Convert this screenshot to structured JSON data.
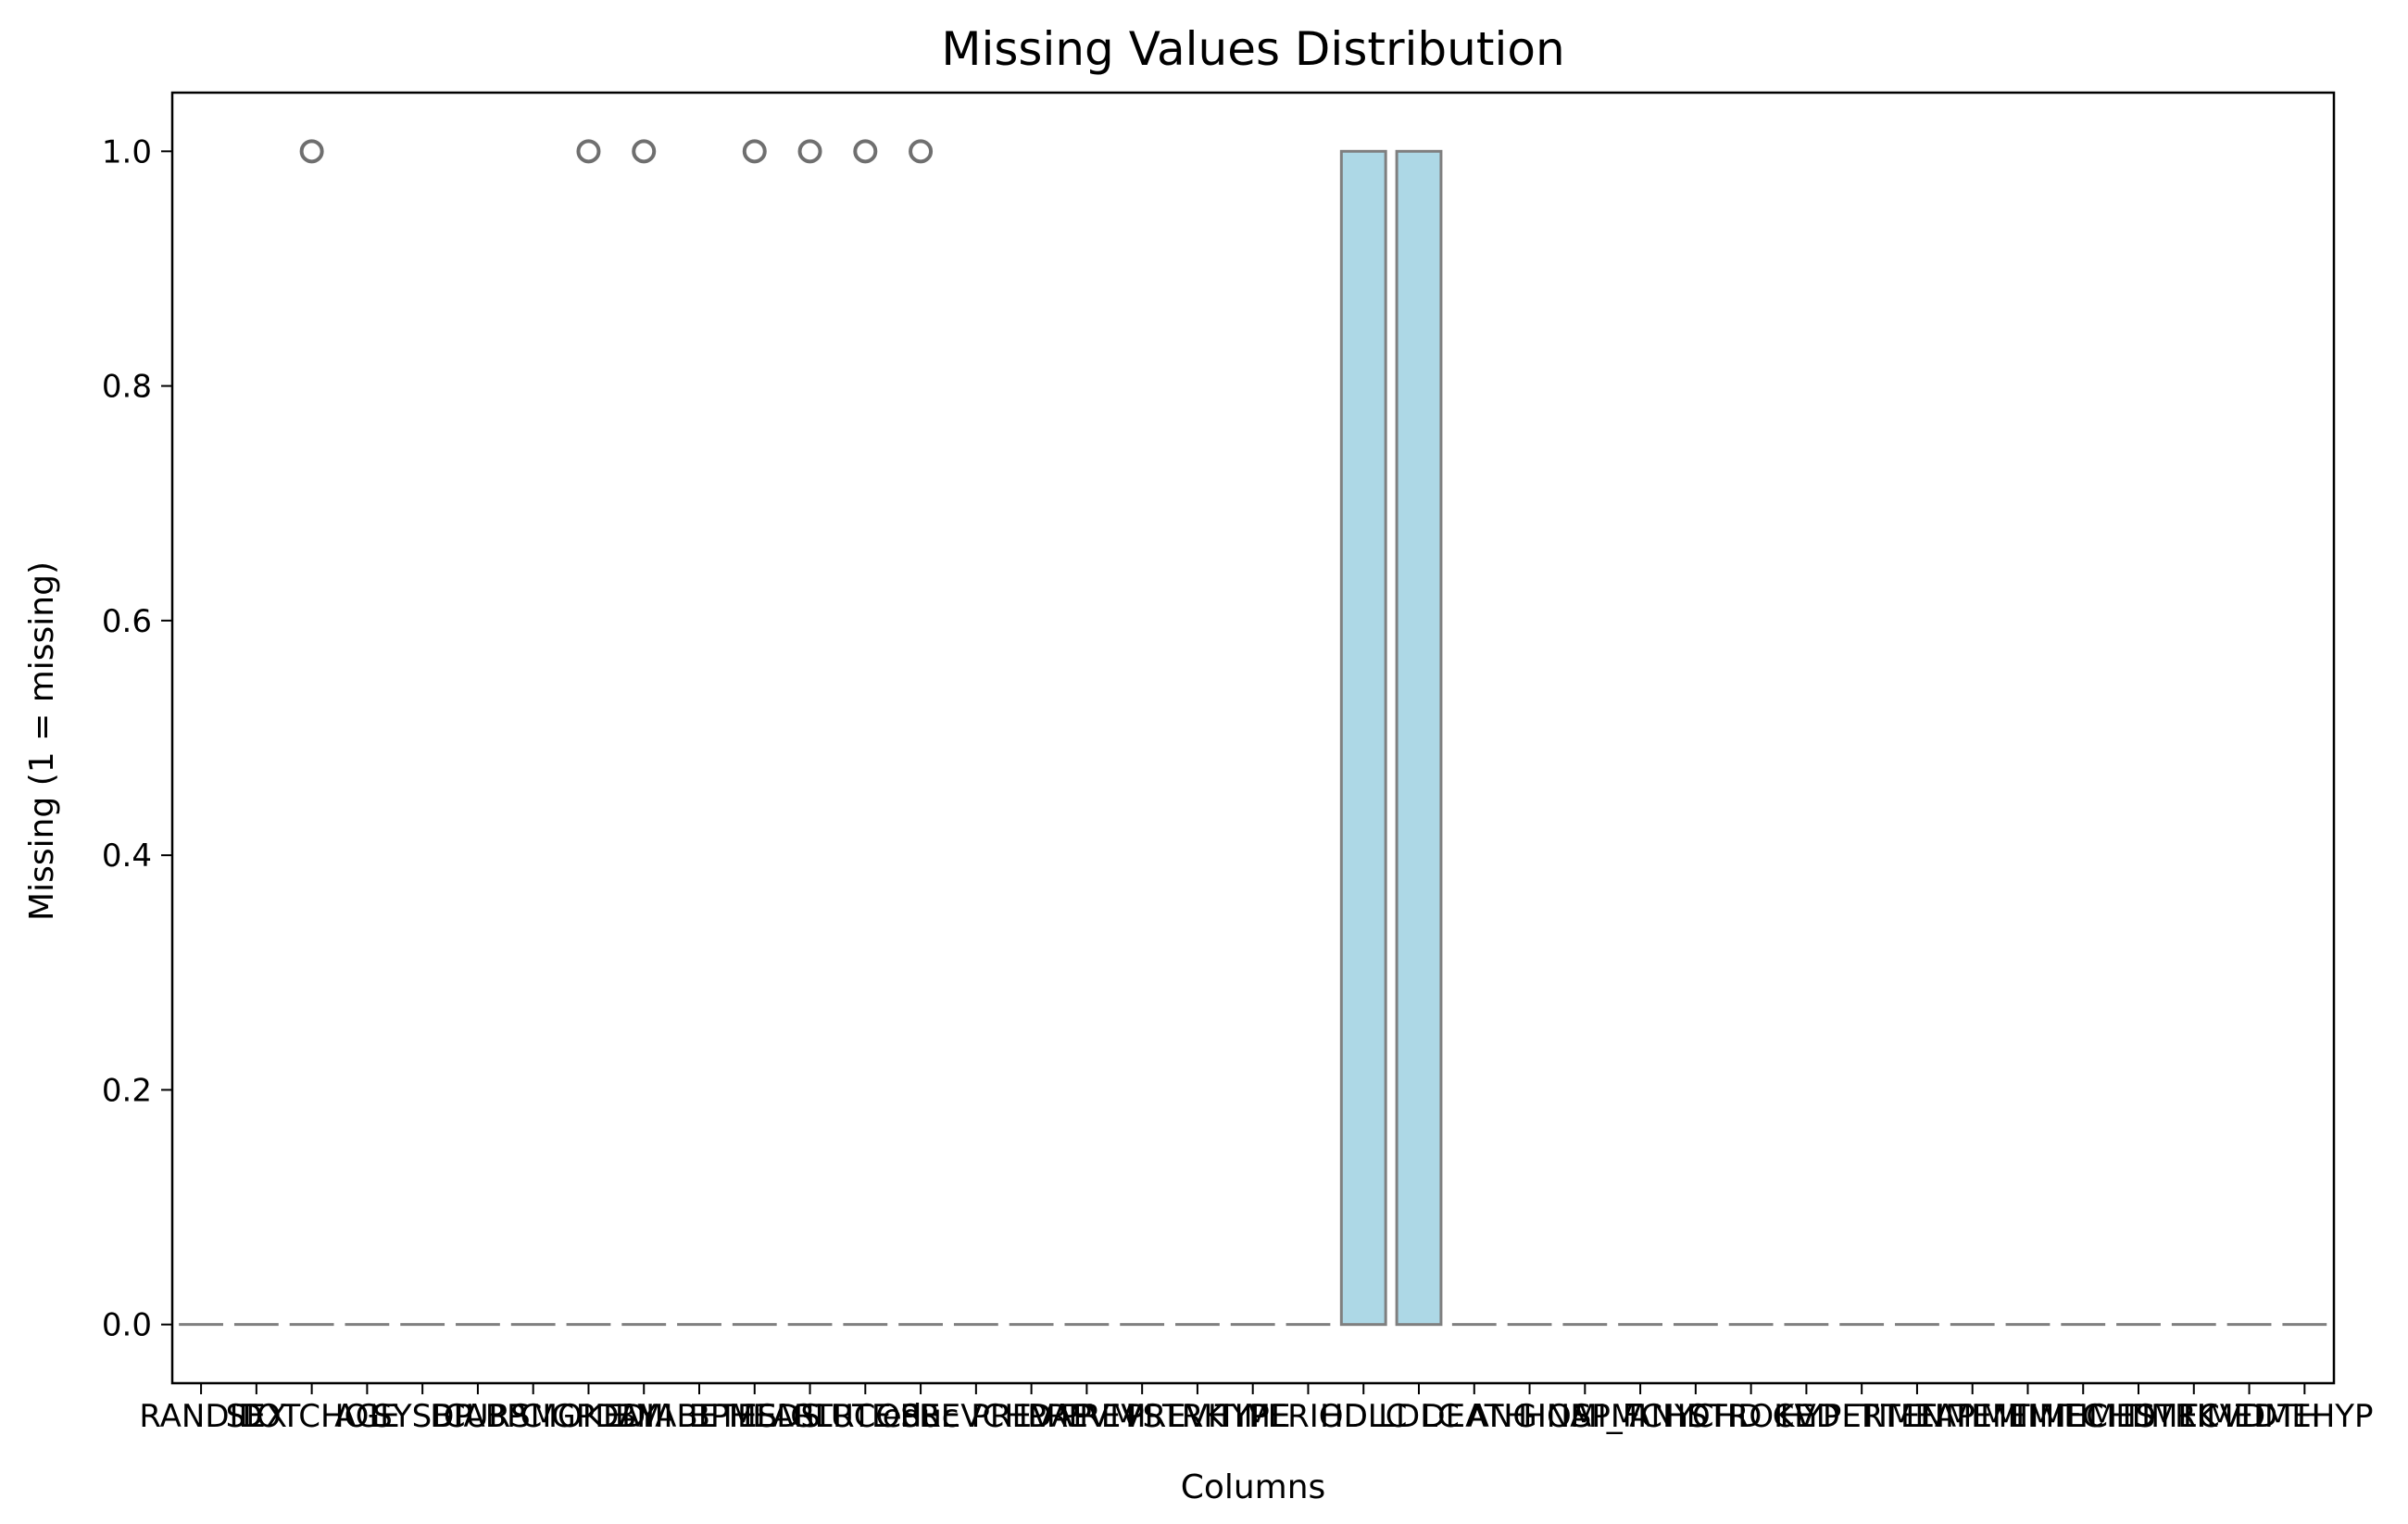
{
  "chart_data": {
    "type": "box",
    "title": "Missing Values Distribution",
    "xlabel": "Columns",
    "ylabel": "Missing (1 = missing)",
    "ylim": [
      -0.05,
      1.05
    ],
    "yticks": [
      "0.0",
      "0.2",
      "0.4",
      "0.6",
      "0.8",
      "1.0"
    ],
    "ytick_values": [
      0.0,
      0.2,
      0.4,
      0.6,
      0.8,
      1.0
    ],
    "grid": false,
    "colors": {
      "box_fill": "#add8e6",
      "box_edge": "#7f7f7f",
      "outlier_edge": "#6f6f6f"
    },
    "categories": [
      "RANDID",
      "SEX",
      "TOTCHOL",
      "AGE",
      "SYSBP",
      "DIABP",
      "CURSMOKE",
      "CIGPDAY",
      "BMI",
      "DIABETES",
      "BPMEDS",
      "HEARTRTE",
      "GLUCOSE",
      "educ",
      "PREVCHD",
      "PREVAP",
      "PREVMI",
      "PREVSTRK",
      "PREVHYP",
      "TIME",
      "PERIOD",
      "HDLC",
      "LDLC",
      "DEATH",
      "ANGINA",
      "HOSPMI",
      "MI_FCHD",
      "ANYCHD",
      "STROKE",
      "CVD",
      "HYPERTEN",
      "TIMEAP",
      "TIMEMI",
      "TIMEMIFC",
      "TIMECHD",
      "TIMESTRK",
      "TIMECVD",
      "TIMEDTH",
      "TIMEHYP"
    ],
    "boxes": [
      {
        "q1": 0,
        "median": 0,
        "q3": 0,
        "whisker_low": 0,
        "whisker_high": 0,
        "outliers": []
      },
      {
        "q1": 0,
        "median": 0,
        "q3": 0,
        "whisker_low": 0,
        "whisker_high": 0,
        "outliers": []
      },
      {
        "q1": 0,
        "median": 0,
        "q3": 0,
        "whisker_low": 0,
        "whisker_high": 0,
        "outliers": [
          1
        ]
      },
      {
        "q1": 0,
        "median": 0,
        "q3": 0,
        "whisker_low": 0,
        "whisker_high": 0,
        "outliers": []
      },
      {
        "q1": 0,
        "median": 0,
        "q3": 0,
        "whisker_low": 0,
        "whisker_high": 0,
        "outliers": []
      },
      {
        "q1": 0,
        "median": 0,
        "q3": 0,
        "whisker_low": 0,
        "whisker_high": 0,
        "outliers": []
      },
      {
        "q1": 0,
        "median": 0,
        "q3": 0,
        "whisker_low": 0,
        "whisker_high": 0,
        "outliers": []
      },
      {
        "q1": 0,
        "median": 0,
        "q3": 0,
        "whisker_low": 0,
        "whisker_high": 0,
        "outliers": [
          1
        ]
      },
      {
        "q1": 0,
        "median": 0,
        "q3": 0,
        "whisker_low": 0,
        "whisker_high": 0,
        "outliers": [
          1
        ]
      },
      {
        "q1": 0,
        "median": 0,
        "q3": 0,
        "whisker_low": 0,
        "whisker_high": 0,
        "outliers": []
      },
      {
        "q1": 0,
        "median": 0,
        "q3": 0,
        "whisker_low": 0,
        "whisker_high": 0,
        "outliers": [
          1
        ]
      },
      {
        "q1": 0,
        "median": 0,
        "q3": 0,
        "whisker_low": 0,
        "whisker_high": 0,
        "outliers": [
          1
        ]
      },
      {
        "q1": 0,
        "median": 0,
        "q3": 0,
        "whisker_low": 0,
        "whisker_high": 0,
        "outliers": [
          1
        ]
      },
      {
        "q1": 0,
        "median": 0,
        "q3": 0,
        "whisker_low": 0,
        "whisker_high": 0,
        "outliers": [
          1
        ]
      },
      {
        "q1": 0,
        "median": 0,
        "q3": 0,
        "whisker_low": 0,
        "whisker_high": 0,
        "outliers": []
      },
      {
        "q1": 0,
        "median": 0,
        "q3": 0,
        "whisker_low": 0,
        "whisker_high": 0,
        "outliers": []
      },
      {
        "q1": 0,
        "median": 0,
        "q3": 0,
        "whisker_low": 0,
        "whisker_high": 0,
        "outliers": []
      },
      {
        "q1": 0,
        "median": 0,
        "q3": 0,
        "whisker_low": 0,
        "whisker_high": 0,
        "outliers": []
      },
      {
        "q1": 0,
        "median": 0,
        "q3": 0,
        "whisker_low": 0,
        "whisker_high": 0,
        "outliers": []
      },
      {
        "q1": 0,
        "median": 0,
        "q3": 0,
        "whisker_low": 0,
        "whisker_high": 0,
        "outliers": []
      },
      {
        "q1": 0,
        "median": 0,
        "q3": 0,
        "whisker_low": 0,
        "whisker_high": 0,
        "outliers": []
      },
      {
        "q1": 0,
        "median": 0,
        "q3": 1,
        "whisker_low": 0,
        "whisker_high": 1,
        "outliers": []
      },
      {
        "q1": 0,
        "median": 0,
        "q3": 1,
        "whisker_low": 0,
        "whisker_high": 1,
        "outliers": []
      },
      {
        "q1": 0,
        "median": 0,
        "q3": 0,
        "whisker_low": 0,
        "whisker_high": 0,
        "outliers": []
      },
      {
        "q1": 0,
        "median": 0,
        "q3": 0,
        "whisker_low": 0,
        "whisker_high": 0,
        "outliers": []
      },
      {
        "q1": 0,
        "median": 0,
        "q3": 0,
        "whisker_low": 0,
        "whisker_high": 0,
        "outliers": []
      },
      {
        "q1": 0,
        "median": 0,
        "q3": 0,
        "whisker_low": 0,
        "whisker_high": 0,
        "outliers": []
      },
      {
        "q1": 0,
        "median": 0,
        "q3": 0,
        "whisker_low": 0,
        "whisker_high": 0,
        "outliers": []
      },
      {
        "q1": 0,
        "median": 0,
        "q3": 0,
        "whisker_low": 0,
        "whisker_high": 0,
        "outliers": []
      },
      {
        "q1": 0,
        "median": 0,
        "q3": 0,
        "whisker_low": 0,
        "whisker_high": 0,
        "outliers": []
      },
      {
        "q1": 0,
        "median": 0,
        "q3": 0,
        "whisker_low": 0,
        "whisker_high": 0,
        "outliers": []
      },
      {
        "q1": 0,
        "median": 0,
        "q3": 0,
        "whisker_low": 0,
        "whisker_high": 0,
        "outliers": []
      },
      {
        "q1": 0,
        "median": 0,
        "q3": 0,
        "whisker_low": 0,
        "whisker_high": 0,
        "outliers": []
      },
      {
        "q1": 0,
        "median": 0,
        "q3": 0,
        "whisker_low": 0,
        "whisker_high": 0,
        "outliers": []
      },
      {
        "q1": 0,
        "median": 0,
        "q3": 0,
        "whisker_low": 0,
        "whisker_high": 0,
        "outliers": []
      },
      {
        "q1": 0,
        "median": 0,
        "q3": 0,
        "whisker_low": 0,
        "whisker_high": 0,
        "outliers": []
      },
      {
        "q1": 0,
        "median": 0,
        "q3": 0,
        "whisker_low": 0,
        "whisker_high": 0,
        "outliers": []
      },
      {
        "q1": 0,
        "median": 0,
        "q3": 0,
        "whisker_low": 0,
        "whisker_high": 0,
        "outliers": []
      },
      {
        "q1": 0,
        "median": 0,
        "q3": 0,
        "whisker_low": 0,
        "whisker_high": 0,
        "outliers": []
      }
    ]
  }
}
